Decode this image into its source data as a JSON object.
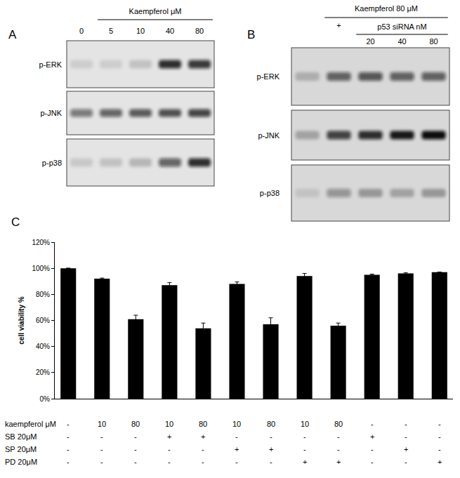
{
  "panel_labels": [
    "A",
    "B",
    "C"
  ],
  "blots": [
    {
      "header": "Kaempferol μM",
      "lanes": [
        "0",
        "5",
        "10",
        "40",
        "80"
      ],
      "rows": [
        {
          "label": "p-ERK",
          "bands": [
            0.1,
            0.1,
            0.15,
            0.85,
            0.8
          ]
        },
        {
          "label": "p-JNK",
          "bands": [
            0.5,
            0.6,
            0.65,
            0.7,
            0.75
          ]
        },
        {
          "label": "p-p38",
          "bands": [
            0.12,
            0.15,
            0.2,
            0.6,
            0.85
          ]
        }
      ]
    },
    {
      "header": "Kaempferol 80 μM",
      "subheader": "p53 siRNA nM",
      "lanes": [
        null,
        "+",
        "20",
        "40",
        "80"
      ],
      "rows": [
        {
          "label": "p-ERK",
          "bands": [
            0.2,
            0.6,
            0.65,
            0.6,
            0.6
          ]
        },
        {
          "label": "p-JNK",
          "bands": [
            0.25,
            0.75,
            0.85,
            0.95,
            1.0
          ]
        },
        {
          "label": "p-p38",
          "bands": [
            0.1,
            0.35,
            0.3,
            0.25,
            0.3
          ]
        }
      ]
    }
  ],
  "chart_data": {
    "type": "bar",
    "y_label": "cell viability %",
    "categories": [
      null,
      null,
      null,
      null,
      null,
      null,
      null,
      null,
      null,
      null,
      null,
      null
    ],
    "values": [
      100,
      92,
      61,
      87,
      54,
      88,
      57,
      94,
      56,
      95,
      96,
      97
    ],
    "errors": [
      0,
      0.5,
      3,
      2,
      4,
      1.5,
      5,
      2,
      2,
      0.5,
      0.5,
      0
    ],
    "color": "#000000",
    "ylim": [
      0,
      120
    ],
    "yticks": [
      {
        "value": 0,
        "label": "0%"
      },
      {
        "value": 20,
        "label": "20%"
      },
      {
        "value": 40,
        "label": "40%"
      },
      {
        "value": 60,
        "label": "60%"
      },
      {
        "value": 80,
        "label": "80%"
      },
      {
        "value": 100,
        "label": "100%"
      },
      {
        "value": 120,
        "label": "120%"
      }
    ],
    "grid": false,
    "tick_labels": "y"
  },
  "treatments": {
    "rows": [
      {
        "label": "kaempferol μM",
        "cells": [
          "-",
          "10",
          "80",
          "10",
          "80",
          "10",
          "80",
          "10",
          "80",
          "-",
          "-",
          "-"
        ]
      },
      {
        "label": "SB 20μM",
        "cells": [
          "-",
          "-",
          "-",
          "+",
          "+",
          "-",
          "-",
          "-",
          "-",
          "+",
          "-",
          "-"
        ]
      },
      {
        "label": "SP 20μM",
        "cells": [
          "-",
          "-",
          "-",
          "-",
          "-",
          "+",
          "+",
          "-",
          "-",
          "-",
          "+",
          "-"
        ]
      },
      {
        "label": "PD 20μM",
        "cells": [
          "-",
          "-",
          "-",
          "-",
          "-",
          "-",
          "-",
          "+",
          "+",
          "-",
          "-",
          "+"
        ]
      }
    ]
  }
}
